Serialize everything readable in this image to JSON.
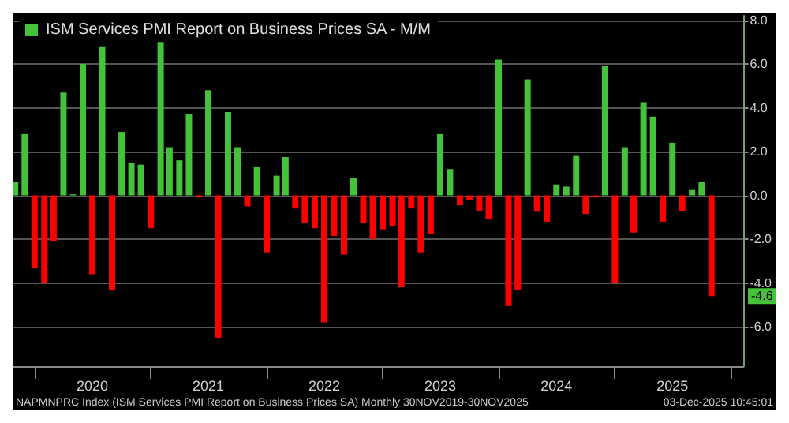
{
  "chart_data": {
    "type": "bar",
    "x": [
      "2019-11",
      "2019-12",
      "2020-01",
      "2020-02",
      "2020-03",
      "2020-04",
      "2020-05",
      "2020-06",
      "2020-07",
      "2020-08",
      "2020-09",
      "2020-10",
      "2020-11",
      "2020-12",
      "2021-01",
      "2021-02",
      "2021-03",
      "2021-04",
      "2021-05",
      "2021-06",
      "2021-07",
      "2021-08",
      "2021-09",
      "2021-10",
      "2021-11",
      "2021-12",
      "2022-01",
      "2022-02",
      "2022-03",
      "2022-04",
      "2022-05",
      "2022-06",
      "2022-07",
      "2022-08",
      "2022-09",
      "2022-10",
      "2022-11",
      "2022-12",
      "2023-01",
      "2023-02",
      "2023-03",
      "2023-04",
      "2023-05",
      "2023-06",
      "2023-07",
      "2023-08",
      "2023-09",
      "2023-10",
      "2023-11",
      "2023-12",
      "2024-01",
      "2024-02",
      "2024-03",
      "2024-04",
      "2024-05",
      "2024-06",
      "2024-07",
      "2024-08",
      "2024-09",
      "2024-10",
      "2024-11",
      "2024-12",
      "2025-01",
      "2025-02",
      "2025-03",
      "2025-04",
      "2025-05",
      "2025-06",
      "2025-07",
      "2025-08",
      "2025-09",
      "2025-10",
      "2025-11"
    ],
    "series": [
      {
        "name": "ISM Services PMI Report on Business Prices SA - M/M",
        "color": "#44c23a",
        "values": [
          0.6,
          2.8,
          -3.3,
          -4.0,
          -2.1,
          4.7,
          0.05,
          6.0,
          -3.6,
          6.8,
          -4.3,
          2.9,
          1.5,
          1.4,
          -1.5,
          7.0,
          2.2,
          1.6,
          3.7,
          -0.1,
          4.8,
          -6.5,
          3.8,
          2.2,
          -0.5,
          1.3,
          -2.6,
          0.9,
          1.75,
          -0.6,
          -1.25,
          -1.5,
          -5.8,
          -1.85,
          -2.7,
          0.8,
          -1.25,
          -2.0,
          -1.55,
          -1.4,
          -4.2,
          -0.6,
          -2.6,
          -1.75,
          2.8,
          1.2,
          -0.45,
          -0.2,
          -0.7,
          -1.1,
          6.2,
          -5.05,
          -4.3,
          5.3,
          -0.75,
          -1.2,
          0.5,
          0.4,
          1.8,
          -0.85,
          -0.1,
          5.9,
          -4.0,
          2.2,
          -1.7,
          4.25,
          3.6,
          -1.2,
          2.4,
          -0.7,
          0.25,
          0.6,
          -4.6
        ],
        "colors": [
          "#44c23a",
          "#44c23a",
          "#ff0000",
          "#ff0000",
          "#ff0000",
          "#44c23a",
          "#44c23a",
          "#44c23a",
          "#ff0000",
          "#44c23a",
          "#ff0000",
          "#44c23a",
          "#44c23a",
          "#44c23a",
          "#ff0000",
          "#44c23a",
          "#44c23a",
          "#44c23a",
          "#44c23a",
          "#ff0000",
          "#44c23a",
          "#ff0000",
          "#44c23a",
          "#44c23a",
          "#ff0000",
          "#44c23a",
          "#ff0000",
          "#44c23a",
          "#44c23a",
          "#ff0000",
          "#ff0000",
          "#ff0000",
          "#ff0000",
          "#ff0000",
          "#ff0000",
          "#44c23a",
          "#ff0000",
          "#ff0000",
          "#ff0000",
          "#ff0000",
          "#ff0000",
          "#ff0000",
          "#ff0000",
          "#ff0000",
          "#44c23a",
          "#44c23a",
          "#ff0000",
          "#ff0000",
          "#ff0000",
          "#ff0000",
          "#44c23a",
          "#ff0000",
          "#ff0000",
          "#44c23a",
          "#ff0000",
          "#ff0000",
          "#44c23a",
          "#44c23a",
          "#44c23a",
          "#ff0000",
          "#ff0000",
          "#44c23a",
          "#ff0000",
          "#44c23a",
          "#ff0000",
          "#44c23a",
          "#44c23a",
          "#ff0000",
          "#44c23a",
          "#ff0000",
          "#44c23a",
          "#44c23a",
          "#ff0000"
        ]
      }
    ],
    "xlim": [
      "2019-10-24",
      "2026-02-10"
    ],
    "xticks": [
      {
        "value": "2020-01",
        "label": null
      },
      {
        "value": "2020-07",
        "label": "2020"
      },
      {
        "value": "2021-01",
        "label": null
      },
      {
        "value": "2021-07",
        "label": "2021"
      },
      {
        "value": "2022-01",
        "label": null
      },
      {
        "value": "2022-07",
        "label": "2022"
      },
      {
        "value": "2023-01",
        "label": null
      },
      {
        "value": "2023-07",
        "label": "2023"
      },
      {
        "value": "2024-01",
        "label": null
      },
      {
        "value": "2024-07",
        "label": "2024"
      },
      {
        "value": "2025-01",
        "label": null
      },
      {
        "value": "2025-07",
        "label": "2025"
      },
      {
        "value": "2026-01",
        "label": null
      }
    ],
    "ylim": [
      -7.8,
      8.2
    ],
    "yticks": [
      {
        "value": -6,
        "label": "-6.0"
      },
      {
        "value": -4,
        "label": "-4.0"
      },
      {
        "value": -2,
        "label": "-2.0"
      },
      {
        "value": 0,
        "label": "0.0"
      },
      {
        "value": 2,
        "label": "2.0"
      },
      {
        "value": 4,
        "label": "4.0"
      },
      {
        "value": 6,
        "label": "6.0"
      },
      {
        "value": 8,
        "label": "8.0"
      }
    ],
    "grid": "y",
    "legend": "top left",
    "annotations": [
      "-4.6",
      "NAPMNPRC Index (ISM Services PMI Report on Business Prices SA) Monthly 30NOV2019-30NOV2025",
      "03-Dec-2025 10:45:01"
    ]
  }
}
